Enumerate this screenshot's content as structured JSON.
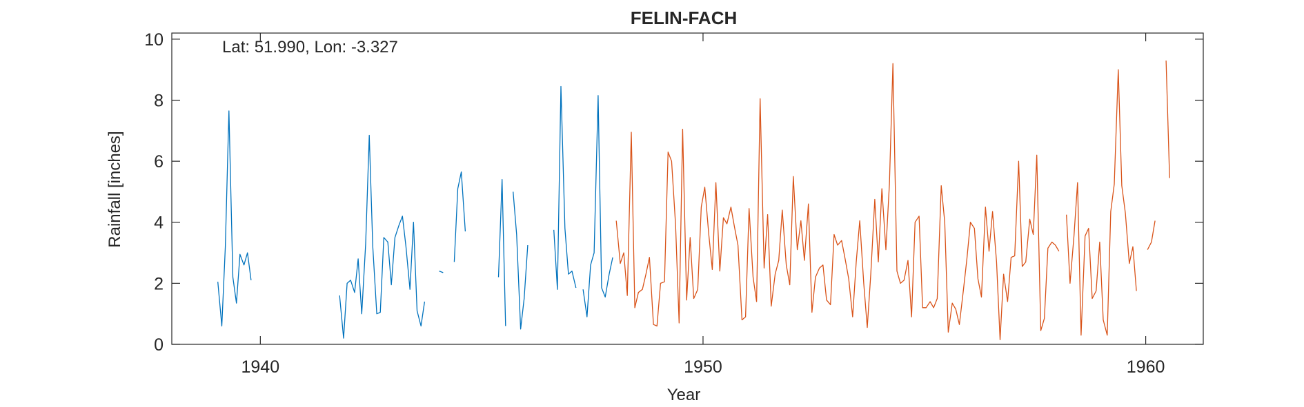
{
  "chart_data": {
    "type": "line",
    "title": "FELIN-FACH",
    "xlabel": "Year",
    "ylabel": "Rainfall [inches]",
    "annotation": "Lat: 51.990, Lon: -3.327",
    "xlim": [
      1938,
      1961.3
    ],
    "ylim": [
      0,
      10.2
    ],
    "grid": false,
    "xticks": [
      1940,
      1950,
      1960
    ],
    "yticks": [
      0,
      2,
      4,
      6,
      8,
      10
    ],
    "series": [
      {
        "color": "#0072BD",
        "segments": [
          [
            [
              1939.04,
              2.05
            ],
            [
              1939.13,
              0.6
            ],
            [
              1939.21,
              3.2
            ],
            [
              1939.29,
              7.65
            ],
            [
              1939.38,
              2.2
            ],
            [
              1939.46,
              1.35
            ],
            [
              1939.54,
              2.95
            ],
            [
              1939.63,
              2.6
            ],
            [
              1939.71,
              3.0
            ],
            [
              1939.79,
              2.1
            ]
          ],
          [
            [
              1941.79,
              1.6
            ],
            [
              1941.88,
              0.2
            ],
            [
              1941.96,
              2.0
            ],
            [
              1942.04,
              2.1
            ],
            [
              1942.13,
              1.7
            ],
            [
              1942.21,
              2.8
            ],
            [
              1942.29,
              1.0
            ],
            [
              1942.38,
              3.3
            ],
            [
              1942.46,
              6.85
            ],
            [
              1942.54,
              3.2
            ],
            [
              1942.63,
              1.0
            ],
            [
              1942.71,
              1.05
            ],
            [
              1942.79,
              3.5
            ],
            [
              1942.88,
              3.35
            ],
            [
              1942.96,
              1.95
            ],
            [
              1943.04,
              3.5
            ],
            [
              1943.13,
              3.9
            ],
            [
              1943.21,
              4.2
            ],
            [
              1943.29,
              3.2
            ],
            [
              1943.38,
              1.8
            ],
            [
              1943.46,
              4.0
            ],
            [
              1943.54,
              1.1
            ],
            [
              1943.63,
              0.6
            ],
            [
              1943.71,
              1.4
            ]
          ],
          [
            [
              1944.04,
              2.4
            ],
            [
              1944.13,
              2.35
            ]
          ],
          [
            [
              1944.38,
              2.7
            ],
            [
              1944.46,
              5.1
            ],
            [
              1944.54,
              5.65
            ],
            [
              1944.63,
              3.7
            ]
          ],
          [
            [
              1945.38,
              2.2
            ],
            [
              1945.46,
              5.4
            ],
            [
              1945.54,
              0.6
            ]
          ],
          [
            [
              1945.71,
              5.0
            ],
            [
              1945.79,
              3.6
            ],
            [
              1945.88,
              0.5
            ],
            [
              1945.96,
              1.5
            ],
            [
              1946.04,
              3.25
            ]
          ],
          [
            [
              1946.63,
              3.75
            ],
            [
              1946.71,
              1.8
            ],
            [
              1946.79,
              8.45
            ],
            [
              1946.88,
              3.8
            ],
            [
              1946.96,
              2.3
            ],
            [
              1947.04,
              2.4
            ],
            [
              1947.13,
              1.85
            ]
          ],
          [
            [
              1947.29,
              1.8
            ],
            [
              1947.38,
              0.9
            ],
            [
              1947.46,
              2.6
            ],
            [
              1947.54,
              3.0
            ],
            [
              1947.63,
              8.15
            ],
            [
              1947.71,
              1.85
            ],
            [
              1947.79,
              1.55
            ],
            [
              1947.88,
              2.3
            ],
            [
              1947.96,
              2.85
            ]
          ]
        ]
      },
      {
        "color": "#D95319",
        "segments": [
          [
            [
              1948.04,
              4.05
            ],
            [
              1948.13,
              2.65
            ],
            [
              1948.21,
              3.0
            ],
            [
              1948.29,
              1.6
            ],
            [
              1948.38,
              6.95
            ],
            [
              1948.46,
              1.2
            ],
            [
              1948.54,
              1.7
            ],
            [
              1948.63,
              1.8
            ],
            [
              1948.71,
              2.3
            ],
            [
              1948.79,
              2.85
            ],
            [
              1948.88,
              0.65
            ],
            [
              1948.96,
              0.6
            ],
            [
              1949.04,
              2.0
            ],
            [
              1949.13,
              2.05
            ],
            [
              1949.21,
              6.3
            ],
            [
              1949.29,
              6.0
            ],
            [
              1949.38,
              3.9
            ],
            [
              1949.46,
              0.7
            ],
            [
              1949.54,
              7.05
            ],
            [
              1949.63,
              1.45
            ],
            [
              1949.71,
              3.5
            ],
            [
              1949.79,
              1.5
            ],
            [
              1949.88,
              1.8
            ],
            [
              1949.96,
              4.5
            ],
            [
              1950.04,
              5.15
            ],
            [
              1950.13,
              3.6
            ],
            [
              1950.21,
              2.45
            ],
            [
              1950.29,
              5.3
            ],
            [
              1950.38,
              2.4
            ],
            [
              1950.46,
              4.15
            ],
            [
              1950.54,
              3.95
            ],
            [
              1950.63,
              4.5
            ],
            [
              1950.71,
              3.85
            ],
            [
              1950.79,
              3.25
            ],
            [
              1950.88,
              0.8
            ],
            [
              1950.96,
              0.9
            ],
            [
              1951.04,
              4.45
            ],
            [
              1951.13,
              2.2
            ],
            [
              1951.21,
              1.4
            ],
            [
              1951.29,
              8.05
            ],
            [
              1951.38,
              2.5
            ],
            [
              1951.46,
              4.25
            ],
            [
              1951.54,
              1.25
            ],
            [
              1951.63,
              2.3
            ],
            [
              1951.71,
              2.75
            ],
            [
              1951.79,
              4.4
            ],
            [
              1951.88,
              2.6
            ],
            [
              1951.96,
              1.95
            ],
            [
              1952.04,
              5.5
            ],
            [
              1952.13,
              3.1
            ],
            [
              1952.21,
              4.05
            ],
            [
              1952.29,
              2.75
            ],
            [
              1952.38,
              4.6
            ],
            [
              1952.46,
              1.05
            ],
            [
              1952.54,
              2.2
            ],
            [
              1952.63,
              2.5
            ],
            [
              1952.71,
              2.6
            ],
            [
              1952.79,
              1.45
            ],
            [
              1952.88,
              1.3
            ],
            [
              1952.96,
              3.6
            ],
            [
              1953.04,
              3.25
            ],
            [
              1953.13,
              3.4
            ],
            [
              1953.21,
              2.8
            ],
            [
              1953.29,
              2.15
            ],
            [
              1953.38,
              0.9
            ],
            [
              1953.46,
              2.7
            ],
            [
              1953.54,
              4.05
            ],
            [
              1953.63,
              2.0
            ],
            [
              1953.71,
              0.55
            ],
            [
              1953.79,
              2.3
            ],
            [
              1953.88,
              4.75
            ],
            [
              1953.96,
              2.7
            ],
            [
              1954.04,
              5.1
            ],
            [
              1954.13,
              3.1
            ],
            [
              1954.21,
              5.25
            ],
            [
              1954.29,
              9.2
            ],
            [
              1954.38,
              2.4
            ],
            [
              1954.46,
              2.0
            ],
            [
              1954.54,
              2.1
            ],
            [
              1954.63,
              2.75
            ],
            [
              1954.71,
              0.9
            ],
            [
              1954.79,
              4.0
            ],
            [
              1954.88,
              4.2
            ],
            [
              1954.96,
              1.2
            ],
            [
              1955.04,
              1.2
            ],
            [
              1955.13,
              1.4
            ],
            [
              1955.21,
              1.2
            ],
            [
              1955.29,
              1.5
            ],
            [
              1955.38,
              5.2
            ],
            [
              1955.46,
              4.0
            ],
            [
              1955.54,
              0.4
            ],
            [
              1955.63,
              1.35
            ],
            [
              1955.71,
              1.15
            ],
            [
              1955.79,
              0.65
            ],
            [
              1955.88,
              1.75
            ],
            [
              1955.96,
              2.8
            ],
            [
              1956.04,
              4.0
            ],
            [
              1956.13,
              3.8
            ],
            [
              1956.21,
              2.15
            ],
            [
              1956.29,
              1.55
            ],
            [
              1956.38,
              4.5
            ],
            [
              1956.46,
              3.05
            ],
            [
              1956.54,
              4.35
            ],
            [
              1956.63,
              2.7
            ],
            [
              1956.71,
              0.15
            ],
            [
              1956.79,
              2.3
            ],
            [
              1956.88,
              1.4
            ],
            [
              1956.96,
              2.85
            ],
            [
              1957.04,
              2.9
            ],
            [
              1957.13,
              6.0
            ],
            [
              1957.21,
              2.55
            ],
            [
              1957.29,
              2.7
            ],
            [
              1957.38,
              4.1
            ],
            [
              1957.46,
              3.6
            ],
            [
              1957.54,
              6.2
            ],
            [
              1957.63,
              0.45
            ],
            [
              1957.71,
              0.85
            ],
            [
              1957.79,
              3.15
            ],
            [
              1957.88,
              3.35
            ],
            [
              1957.96,
              3.25
            ],
            [
              1958.04,
              3.05
            ]
          ],
          [
            [
              1958.21,
              4.25
            ],
            [
              1958.29,
              2.0
            ],
            [
              1958.38,
              3.55
            ],
            [
              1958.46,
              5.3
            ],
            [
              1958.54,
              0.3
            ],
            [
              1958.63,
              3.55
            ],
            [
              1958.71,
              3.8
            ],
            [
              1958.79,
              1.5
            ],
            [
              1958.88,
              1.75
            ],
            [
              1958.96,
              3.35
            ],
            [
              1959.04,
              0.8
            ],
            [
              1959.13,
              0.3
            ],
            [
              1959.21,
              4.35
            ],
            [
              1959.29,
              5.25
            ],
            [
              1959.38,
              9.0
            ],
            [
              1959.46,
              5.2
            ],
            [
              1959.54,
              4.3
            ],
            [
              1959.63,
              2.65
            ],
            [
              1959.71,
              3.2
            ],
            [
              1959.79,
              1.75
            ]
          ],
          [
            [
              1960.04,
              3.1
            ],
            [
              1960.13,
              3.35
            ],
            [
              1960.21,
              4.05
            ]
          ],
          [
            [
              1960.46,
              9.3
            ],
            [
              1960.54,
              5.45
            ]
          ]
        ]
      }
    ]
  }
}
